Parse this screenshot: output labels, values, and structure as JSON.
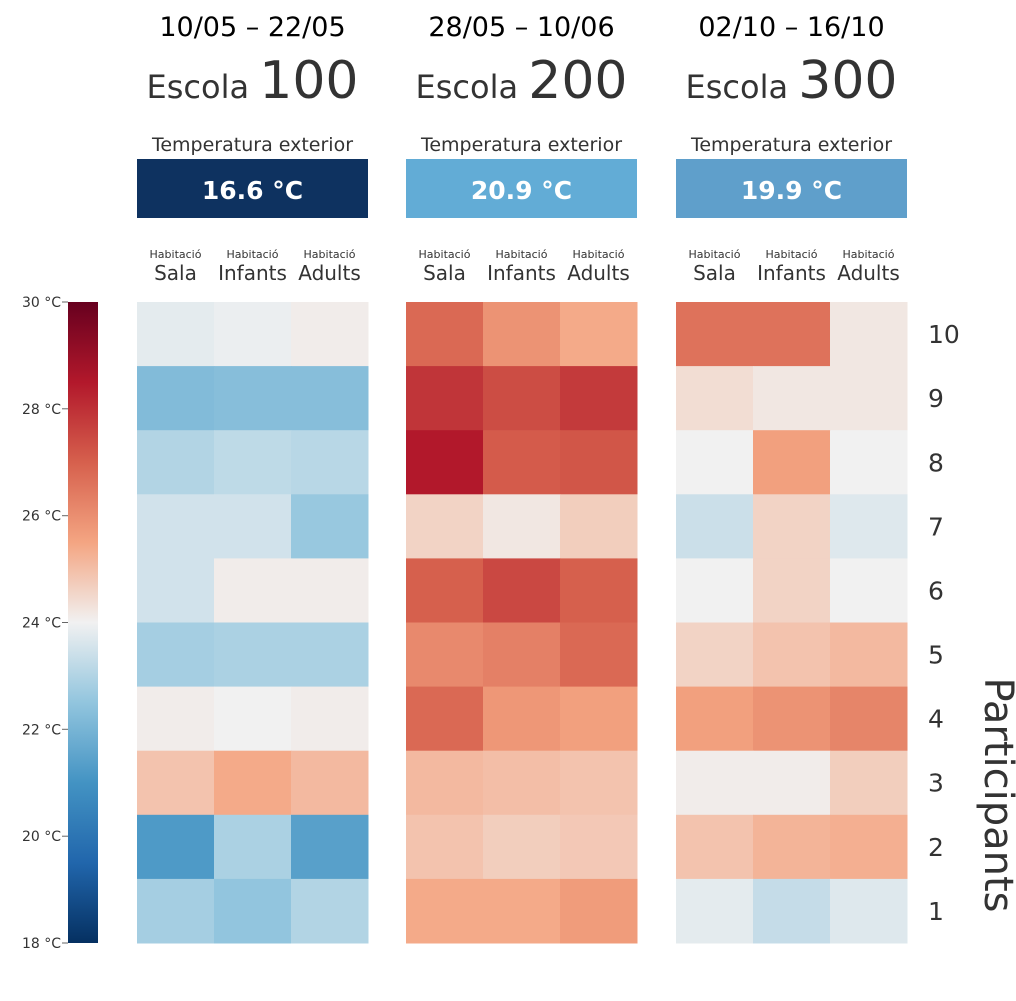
{
  "chart_data": {
    "type": "heatmap",
    "panels": [
      {
        "date_range": "10/05 – 22/05",
        "school_label": "Escola",
        "school_number": "100",
        "outdoor_label": "Temperatura exterior",
        "outdoor_value": "16.6 °C",
        "outdoor_color": "#0e3260",
        "columns": [
          {
            "top": "Habitació",
            "bottom": "Sala"
          },
          {
            "top": "Habitació",
            "bottom": "Infants"
          },
          {
            "top": "Habitació",
            "bottom": "Adults"
          }
        ],
        "values": [
          [
            23.8,
            23.9,
            24.1
          ],
          [
            22.2,
            22.3,
            22.3
          ],
          [
            23.0,
            23.2,
            23.1
          ],
          [
            23.5,
            23.5,
            22.6
          ],
          [
            23.5,
            24.1,
            24.1
          ],
          [
            22.8,
            22.9,
            22.9
          ],
          [
            24.1,
            24.0,
            24.1
          ],
          [
            24.9,
            25.4,
            25.1
          ],
          [
            21.2,
            22.9,
            21.4
          ],
          [
            22.8,
            22.5,
            23.0
          ]
        ]
      },
      {
        "date_range": "28/05 – 10/06",
        "school_label": "Escola",
        "school_number": "200",
        "outdoor_label": "Temperatura exterior",
        "outdoor_value": "20.9 °C",
        "outdoor_color": "#62acd6",
        "columns": [
          {
            "top": "Habitació",
            "bottom": "Sala"
          },
          {
            "top": "Habitació",
            "bottom": "Infants"
          },
          {
            "top": "Habitació",
            "bottom": "Adults"
          }
        ],
        "values": [
          [
            26.8,
            25.9,
            25.4
          ],
          [
            27.9,
            27.4,
            27.8
          ],
          [
            28.5,
            27.1,
            27.2
          ],
          [
            24.6,
            24.2,
            24.7
          ],
          [
            27.0,
            27.5,
            27.0
          ],
          [
            26.1,
            26.3,
            26.8
          ],
          [
            26.8,
            25.8,
            25.6
          ],
          [
            25.1,
            25.0,
            24.9
          ],
          [
            24.9,
            24.7,
            24.8
          ],
          [
            25.4,
            25.4,
            25.7
          ]
        ]
      },
      {
        "date_range": "02/10 – 16/10",
        "school_label": "Escola",
        "school_number": "300",
        "outdoor_label": "Temperatura exterior",
        "outdoor_value": "19.9 °C",
        "outdoor_color": "#5f9fcb",
        "columns": [
          {
            "top": "Habitació",
            "bottom": "Sala"
          },
          {
            "top": "Habitació",
            "bottom": "Infants"
          },
          {
            "top": "Habitació",
            "bottom": "Adults"
          }
        ],
        "values": [
          [
            26.6,
            26.6,
            24.2
          ],
          [
            24.4,
            24.2,
            24.2
          ],
          [
            24.0,
            25.6,
            24.0
          ],
          [
            23.4,
            24.6,
            23.7
          ],
          [
            24.0,
            24.6,
            24.0
          ],
          [
            24.6,
            24.9,
            25.1
          ],
          [
            25.6,
            25.9,
            26.2
          ],
          [
            24.1,
            24.1,
            24.7
          ],
          [
            24.9,
            25.2,
            25.3
          ],
          [
            23.8,
            23.3,
            23.7
          ]
        ]
      }
    ],
    "row_labels": [
      "10",
      "9",
      "8",
      "7",
      "6",
      "5",
      "4",
      "3",
      "2",
      "1"
    ],
    "y_axis_title": "Participants",
    "colorbar": {
      "min": 18,
      "max": 30,
      "ticks": [
        "30 °C",
        "28 °C",
        "26 °C",
        "24 °C",
        "22 °C",
        "20 °C",
        "18 °C"
      ],
      "colormap": "RdBu_r"
    }
  }
}
